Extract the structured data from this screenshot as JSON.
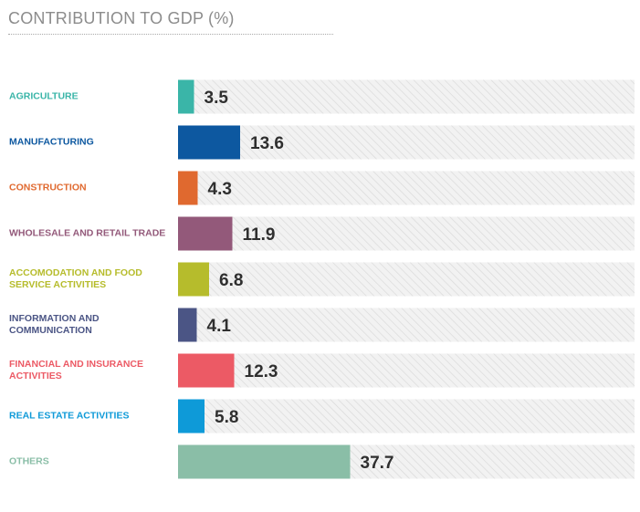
{
  "chart_data": {
    "type": "bar",
    "orientation": "horizontal",
    "title": "CONTRIBUTION TO GDP (%)",
    "xlim": [
      0,
      100
    ],
    "grid": false,
    "legend": "none",
    "track_style": "light-gray diagonal hatch",
    "categories": [
      "AGRICULTURE",
      "MANUFACTURING",
      "CONSTRUCTION",
      "WHOLESALE AND RETAIL TRADE",
      "ACCOMODATION AND FOOD SERVICE ACTIVITIES",
      "INFORMATION AND COMMUNICATION",
      "FINANCIAL AND INSURANCE ACTIVITIES",
      "REAL ESTATE ACTIVITIES",
      "OTHERS"
    ],
    "values": [
      3.5,
      13.6,
      4.3,
      11.9,
      6.8,
      4.1,
      12.3,
      5.8,
      37.7
    ],
    "value_labels": [
      "3.5",
      "13.6",
      "4.3",
      "11.9",
      "6.8",
      "4.1",
      "12.3",
      "5.8",
      "37.7"
    ],
    "colors": [
      "#3ab5a8",
      "#0d58a0",
      "#e0692f",
      "#93597a",
      "#b6bc2c",
      "#4b5585",
      "#ec5a65",
      "#0e9ad8",
      "#8abea7"
    ],
    "label_colors": [
      "#3ab5a8",
      "#0d58a0",
      "#e0692f",
      "#93597a",
      "#b6bc2c",
      "#4b5585",
      "#ec5a65",
      "#0e9ad8",
      "#8abea7"
    ]
  }
}
